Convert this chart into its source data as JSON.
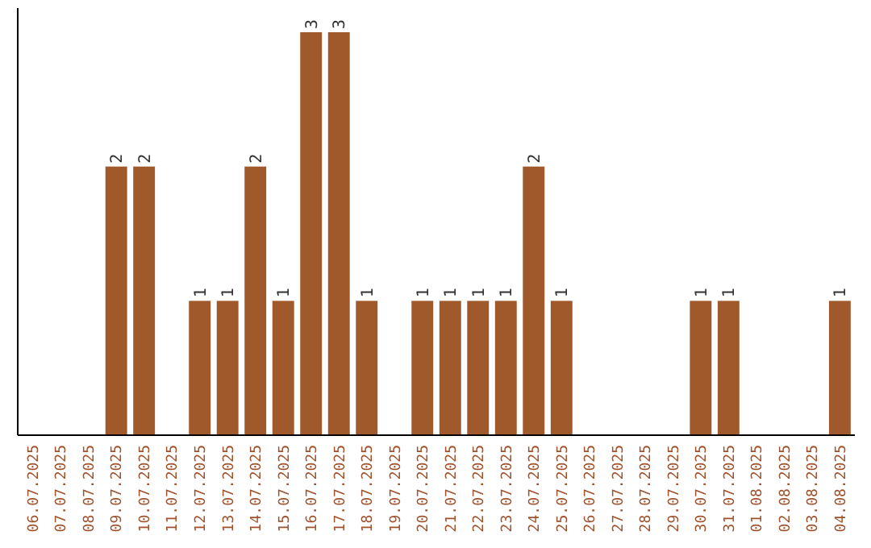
{
  "chart_data": {
    "type": "bar",
    "categories": [
      "06.07.2025",
      "07.07.2025",
      "08.07.2025",
      "09.07.2025",
      "10.07.2025",
      "11.07.2025",
      "12.07.2025",
      "13.07.2025",
      "14.07.2025",
      "15.07.2025",
      "16.07.2025",
      "17.07.2025",
      "18.07.2025",
      "19.07.2025",
      "20.07.2025",
      "21.07.2025",
      "22.07.2025",
      "23.07.2025",
      "24.07.2025",
      "25.07.2025",
      "26.07.2025",
      "27.07.2025",
      "28.07.2025",
      "29.07.2025",
      "30.07.2025",
      "31.07.2025",
      "01.08.2025",
      "02.08.2025",
      "03.08.2025",
      "04.08.2025"
    ],
    "values": [
      0,
      0,
      0,
      2,
      2,
      0,
      1,
      1,
      2,
      1,
      3,
      3,
      1,
      0,
      1,
      1,
      1,
      1,
      2,
      1,
      0,
      0,
      0,
      0,
      1,
      1,
      0,
      0,
      0,
      1
    ],
    "value_labels": [
      null,
      null,
      null,
      "2",
      "2",
      null,
      "1",
      "1",
      "2",
      "1",
      "3",
      "3",
      "1",
      null,
      "1",
      "1",
      "1",
      "1",
      "2",
      "1",
      null,
      null,
      null,
      null,
      "1",
      "1",
      null,
      null,
      null,
      "1"
    ],
    "color": "#a0592a"
  }
}
